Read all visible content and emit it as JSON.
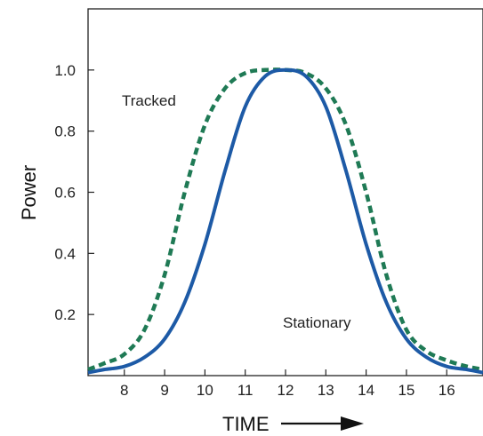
{
  "chart_data": {
    "type": "line",
    "title": "",
    "xlabel": "TIME",
    "ylabel": "Power",
    "xlim": [
      7.1,
      16.9
    ],
    "ylim": [
      0.0,
      1.2
    ],
    "grid": false,
    "legend": "none",
    "x_ticks": [
      "8",
      "9",
      "10",
      "11",
      "12",
      "13",
      "14",
      "15",
      "16"
    ],
    "y_ticks": [
      "0.2",
      "0.4",
      "0.6",
      "0.8",
      "1.0"
    ],
    "x": [
      7.1,
      7.5,
      8,
      8.5,
      9,
      9.5,
      10,
      10.5,
      11,
      11.5,
      12,
      12.5,
      13,
      13.5,
      14,
      14.5,
      15,
      15.5,
      16,
      16.5,
      16.9
    ],
    "series": [
      {
        "name": "Tracked",
        "style": "dashed",
        "color": "#1f7a55",
        "values": [
          0.02,
          0.04,
          0.07,
          0.15,
          0.33,
          0.6,
          0.82,
          0.94,
          0.99,
          1.0,
          1.0,
          0.99,
          0.94,
          0.82,
          0.6,
          0.33,
          0.15,
          0.08,
          0.05,
          0.03,
          0.02
        ]
      },
      {
        "name": "Stationary",
        "style": "solid",
        "color": "#1d5aa6",
        "values": [
          0.01,
          0.02,
          0.03,
          0.06,
          0.12,
          0.24,
          0.43,
          0.67,
          0.88,
          0.98,
          1.0,
          0.98,
          0.88,
          0.67,
          0.43,
          0.24,
          0.12,
          0.06,
          0.03,
          0.02,
          0.01
        ]
      }
    ]
  }
}
